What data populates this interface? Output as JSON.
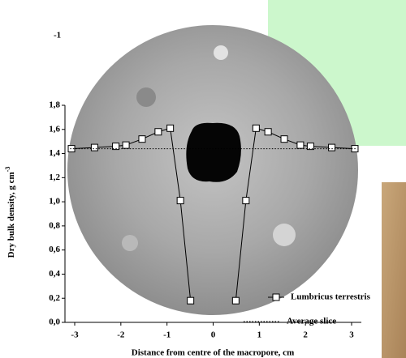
{
  "chart_data": {
    "type": "line",
    "x_label": "Distance from centre of the macropore, cm",
    "y_label": "Dry bulk density, g cm",
    "y_label_sup": "-3",
    "corner_text": "-1",
    "xlim": [
      -3,
      3
    ],
    "xticks": [
      -3,
      -2,
      -1,
      0,
      1,
      2,
      3
    ],
    "ylim": [
      0,
      1.8
    ],
    "yticks": [
      {
        "value": 0,
        "label": "0,0"
      },
      {
        "value": 0.2,
        "label": "0,2"
      },
      {
        "value": 0.4,
        "label": "0,4"
      },
      {
        "value": 0.6,
        "label": "0,6"
      },
      {
        "value": 0.8,
        "label": "0,8"
      },
      {
        "value": 1.0,
        "label": "1,0"
      },
      {
        "value": 1.2,
        "label": "1,2"
      },
      {
        "value": 1.4,
        "label": "1,4"
      },
      {
        "value": 1.6,
        "label": "1,6"
      },
      {
        "value": 1.8,
        "label": "1,8"
      }
    ],
    "series": [
      {
        "name": "Lumbricus terrestris",
        "color": "#000000",
        "marker": "square",
        "style": "solid",
        "x": [
          -3.07,
          -2.57,
          -2.11,
          -1.89,
          -1.54,
          -1.19,
          -0.93,
          -0.71,
          -0.49,
          0,
          0.49,
          0.71,
          0.93,
          1.19,
          1.54,
          1.89,
          2.11,
          2.57,
          3.07
        ],
        "values": [
          1.44,
          1.45,
          1.46,
          1.47,
          1.52,
          1.58,
          1.61,
          1.01,
          0.18,
          null,
          0.18,
          1.01,
          1.61,
          1.58,
          1.52,
          1.47,
          1.46,
          1.45,
          1.44
        ]
      },
      {
        "name": "Average slice",
        "color": "#000000",
        "marker": "none",
        "style": "dotted",
        "x": [
          -3.1,
          3.1
        ],
        "values": [
          1.44,
          1.44
        ]
      }
    ]
  }
}
